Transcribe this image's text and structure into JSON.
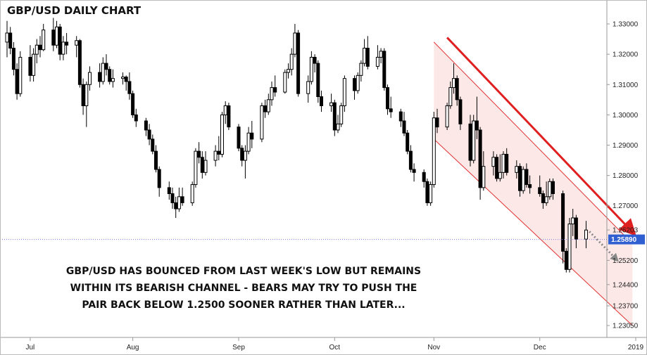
{
  "chart_data": {
    "type": "candlestick",
    "title": "GBP/USD DAILY CHART",
    "x_labels": [
      "Jul",
      "Aug",
      "Sep",
      "Oct",
      "Nov",
      "Dec",
      "2019"
    ],
    "y_ticks": [
      "1.33000",
      "1.32000",
      "1.31000",
      "1.30000",
      "1.29000",
      "1.28000",
      "1.27000",
      "1.26203",
      "1.25200",
      "1.24400",
      "1.23700",
      "1.23050"
    ],
    "y_range": [
      1.2275,
      1.3365
    ],
    "current_price": "1.25890",
    "current_price_value": 1.2589,
    "annotation": [
      "GBP/USD HAS BOUNCED FROM LAST WEEK'S LOW BUT REMAINS",
      "WITHIN ITS BEARISH CHANNEL - BEARS MAY TRY TO PUSH THE",
      "PAIR BACK BELOW 1.2500 SOONER RATHER THAN LATER..."
    ],
    "candles_approx": [
      {
        "date": "2018-06-25",
        "o": 1.324,
        "h": 1.331,
        "l": 1.319,
        "c": 1.327
      },
      {
        "date": "2018-06-26",
        "o": 1.327,
        "h": 1.329,
        "l": 1.32,
        "c": 1.322
      },
      {
        "date": "2018-06-27",
        "o": 1.322,
        "h": 1.324,
        "l": 1.313,
        "c": 1.315
      },
      {
        "date": "2018-06-28",
        "o": 1.315,
        "h": 1.317,
        "l": 1.305,
        "c": 1.307
      },
      {
        "date": "2018-06-29",
        "o": 1.307,
        "h": 1.321,
        "l": 1.306,
        "c": 1.319
      },
      {
        "date": "2018-07-02",
        "o": 1.319,
        "h": 1.323,
        "l": 1.311,
        "c": 1.313
      },
      {
        "date": "2018-07-03",
        "o": 1.313,
        "h": 1.322,
        "l": 1.311,
        "c": 1.32
      },
      {
        "date": "2018-07-04",
        "o": 1.32,
        "h": 1.325,
        "l": 1.317,
        "c": 1.323
      },
      {
        "date": "2018-07-05",
        "o": 1.323,
        "h": 1.326,
        "l": 1.319,
        "c": 1.3215
      },
      {
        "date": "2018-07-06",
        "o": 1.3215,
        "h": 1.33,
        "l": 1.321,
        "c": 1.328
      },
      {
        "date": "2018-07-09",
        "o": 1.328,
        "h": 1.332,
        "l": 1.321,
        "c": 1.323
      },
      {
        "date": "2018-07-10",
        "o": 1.323,
        "h": 1.331,
        "l": 1.322,
        "c": 1.329
      },
      {
        "date": "2018-07-11",
        "o": 1.329,
        "h": 1.33,
        "l": 1.318,
        "c": 1.32
      },
      {
        "date": "2018-07-12",
        "o": 1.32,
        "h": 1.326,
        "l": 1.318,
        "c": 1.324
      },
      {
        "date": "2018-07-13",
        "o": 1.324,
        "h": 1.327,
        "l": 1.32,
        "c": 1.323
      },
      {
        "date": "2018-07-16",
        "o": 1.323,
        "h": 1.326,
        "l": 1.319,
        "c": 1.3245
      },
      {
        "date": "2018-07-17",
        "o": 1.3245,
        "h": 1.325,
        "l": 1.309,
        "c": 1.31
      },
      {
        "date": "2018-07-18",
        "o": 1.31,
        "h": 1.312,
        "l": 1.3,
        "c": 1.303
      },
      {
        "date": "2018-07-19",
        "o": 1.303,
        "h": 1.311,
        "l": 1.296,
        "c": 1.31
      },
      {
        "date": "2018-07-20",
        "o": 1.31,
        "h": 1.316,
        "l": 1.308,
        "c": 1.314
      },
      {
        "date": "2018-07-23",
        "o": 1.314,
        "h": 1.317,
        "l": 1.309,
        "c": 1.311
      },
      {
        "date": "2018-07-24",
        "o": 1.311,
        "h": 1.319,
        "l": 1.31,
        "c": 1.317
      },
      {
        "date": "2018-07-25",
        "o": 1.317,
        "h": 1.32,
        "l": 1.313,
        "c": 1.315
      },
      {
        "date": "2018-07-26",
        "o": 1.315,
        "h": 1.316,
        "l": 1.31,
        "c": 1.311
      },
      {
        "date": "2018-07-27",
        "o": 1.311,
        "h": 1.315,
        "l": 1.309,
        "c": 1.312
      },
      {
        "date": "2018-07-30",
        "o": 1.312,
        "h": 1.314,
        "l": 1.31,
        "c": 1.3125
      },
      {
        "date": "2018-07-31",
        "o": 1.3125,
        "h": 1.313,
        "l": 1.308,
        "c": 1.311
      },
      {
        "date": "2018-08-01",
        "o": 1.311,
        "h": 1.314,
        "l": 1.305,
        "c": 1.307
      },
      {
        "date": "2018-08-02",
        "o": 1.307,
        "h": 1.308,
        "l": 1.299,
        "c": 1.3
      },
      {
        "date": "2018-08-03",
        "o": 1.3,
        "h": 1.302,
        "l": 1.296,
        "c": 1.298
      },
      {
        "date": "2018-08-06",
        "o": 1.298,
        "h": 1.299,
        "l": 1.293,
        "c": 1.295
      },
      {
        "date": "2018-08-07",
        "o": 1.295,
        "h": 1.297,
        "l": 1.29,
        "c": 1.292
      },
      {
        "date": "2018-08-08",
        "o": 1.292,
        "h": 1.2935,
        "l": 1.287,
        "c": 1.288
      },
      {
        "date": "2018-08-09",
        "o": 1.288,
        "h": 1.29,
        "l": 1.281,
        "c": 1.282
      },
      {
        "date": "2018-08-10",
        "o": 1.282,
        "h": 1.283,
        "l": 1.273,
        "c": 1.276
      },
      {
        "date": "2018-08-13",
        "o": 1.276,
        "h": 1.278,
        "l": 1.272,
        "c": 1.274
      },
      {
        "date": "2018-08-14",
        "o": 1.274,
        "h": 1.276,
        "l": 1.269,
        "c": 1.271
      },
      {
        "date": "2018-08-15",
        "o": 1.271,
        "h": 1.273,
        "l": 1.266,
        "c": 1.269
      },
      {
        "date": "2018-08-16",
        "o": 1.269,
        "h": 1.276,
        "l": 1.268,
        "c": 1.273
      },
      {
        "date": "2018-08-17",
        "o": 1.273,
        "h": 1.276,
        "l": 1.27,
        "c": 1.271
      },
      {
        "date": "2018-08-20",
        "o": 1.271,
        "h": 1.278,
        "l": 1.27,
        "c": 1.277
      },
      {
        "date": "2018-08-21",
        "o": 1.277,
        "h": 1.289,
        "l": 1.276,
        "c": 1.288
      },
      {
        "date": "2018-08-22",
        "o": 1.288,
        "h": 1.291,
        "l": 1.284,
        "c": 1.286
      },
      {
        "date": "2018-08-23",
        "o": 1.286,
        "h": 1.288,
        "l": 1.279,
        "c": 1.281
      },
      {
        "date": "2018-08-24",
        "o": 1.281,
        "h": 1.288,
        "l": 1.28,
        "c": 1.285
      },
      {
        "date": "2018-08-27",
        "o": 1.285,
        "h": 1.29,
        "l": 1.283,
        "c": 1.288
      },
      {
        "date": "2018-08-28",
        "o": 1.288,
        "h": 1.293,
        "l": 1.285,
        "c": 1.287
      },
      {
        "date": "2018-08-29",
        "o": 1.287,
        "h": 1.301,
        "l": 1.286,
        "c": 1.3
      },
      {
        "date": "2018-08-30",
        "o": 1.3,
        "h": 1.3045,
        "l": 1.297,
        "c": 1.303
      },
      {
        "date": "2018-08-31",
        "o": 1.303,
        "h": 1.304,
        "l": 1.295,
        "c": 1.296
      },
      {
        "date": "2018-09-03",
        "o": 1.296,
        "h": 1.297,
        "l": 1.288,
        "c": 1.289
      },
      {
        "date": "2018-09-04",
        "o": 1.289,
        "h": 1.29,
        "l": 1.283,
        "c": 1.285
      },
      {
        "date": "2018-09-05",
        "o": 1.285,
        "h": 1.29,
        "l": 1.279,
        "c": 1.288
      },
      {
        "date": "2018-09-06",
        "o": 1.288,
        "h": 1.296,
        "l": 1.287,
        "c": 1.294
      },
      {
        "date": "2018-09-07",
        "o": 1.294,
        "h": 1.298,
        "l": 1.289,
        "c": 1.292
      },
      {
        "date": "2018-09-10",
        "o": 1.292,
        "h": 1.304,
        "l": 1.291,
        "c": 1.303
      },
      {
        "date": "2018-09-11",
        "o": 1.303,
        "h": 1.305,
        "l": 1.299,
        "c": 1.301
      },
      {
        "date": "2018-09-12",
        "o": 1.301,
        "h": 1.307,
        "l": 1.3,
        "c": 1.305
      },
      {
        "date": "2018-09-13",
        "o": 1.305,
        "h": 1.311,
        "l": 1.303,
        "c": 1.309
      },
      {
        "date": "2018-09-14",
        "o": 1.309,
        "h": 1.313,
        "l": 1.306,
        "c": 1.3075
      },
      {
        "date": "2018-09-17",
        "o": 1.3075,
        "h": 1.315,
        "l": 1.307,
        "c": 1.314
      },
      {
        "date": "2018-09-18",
        "o": 1.314,
        "h": 1.317,
        "l": 1.312,
        "c": 1.315
      },
      {
        "date": "2018-09-19",
        "o": 1.315,
        "h": 1.322,
        "l": 1.313,
        "c": 1.32
      },
      {
        "date": "2018-09-20",
        "o": 1.32,
        "h": 1.33,
        "l": 1.319,
        "c": 1.327
      },
      {
        "date": "2018-09-21",
        "o": 1.327,
        "h": 1.328,
        "l": 1.306,
        "c": 1.307
      },
      {
        "date": "2018-09-24",
        "o": 1.307,
        "h": 1.313,
        "l": 1.304,
        "c": 1.311
      },
      {
        "date": "2018-09-25",
        "o": 1.311,
        "h": 1.321,
        "l": 1.31,
        "c": 1.319
      },
      {
        "date": "2018-09-26",
        "o": 1.319,
        "h": 1.32,
        "l": 1.314,
        "c": 1.317
      },
      {
        "date": "2018-09-27",
        "o": 1.317,
        "h": 1.318,
        "l": 1.304,
        "c": 1.306
      },
      {
        "date": "2018-09-28",
        "o": 1.306,
        "h": 1.308,
        "l": 1.301,
        "c": 1.303
      },
      {
        "date": "2018-10-01",
        "o": 1.303,
        "h": 1.307,
        "l": 1.301,
        "c": 1.304
      },
      {
        "date": "2018-10-02",
        "o": 1.304,
        "h": 1.305,
        "l": 1.293,
        "c": 1.295
      },
      {
        "date": "2018-10-03",
        "o": 1.295,
        "h": 1.3,
        "l": 1.294,
        "c": 1.297
      },
      {
        "date": "2018-10-04",
        "o": 1.297,
        "h": 1.304,
        "l": 1.296,
        "c": 1.303
      },
      {
        "date": "2018-10-05",
        "o": 1.303,
        "h": 1.313,
        "l": 1.301,
        "c": 1.312
      },
      {
        "date": "2018-10-08",
        "o": 1.312,
        "h": 1.313,
        "l": 1.305,
        "c": 1.308
      },
      {
        "date": "2018-10-09",
        "o": 1.308,
        "h": 1.314,
        "l": 1.307,
        "c": 1.313
      },
      {
        "date": "2018-10-10",
        "o": 1.313,
        "h": 1.318,
        "l": 1.311,
        "c": 1.317
      },
      {
        "date": "2018-10-11",
        "o": 1.317,
        "h": 1.325,
        "l": 1.316,
        "c": 1.322
      },
      {
        "date": "2018-10-12",
        "o": 1.322,
        "h": 1.326,
        "l": 1.315,
        "c": 1.316
      },
      {
        "date": "2018-10-15",
        "o": 1.316,
        "h": 1.323,
        "l": 1.315,
        "c": 1.319
      },
      {
        "date": "2018-10-16",
        "o": 1.319,
        "h": 1.322,
        "l": 1.317,
        "c": 1.321
      },
      {
        "date": "2018-10-17",
        "o": 1.321,
        "h": 1.322,
        "l": 1.308,
        "c": 1.309
      },
      {
        "date": "2018-10-18",
        "o": 1.309,
        "h": 1.31,
        "l": 1.3,
        "c": 1.302
      },
      {
        "date": "2018-10-19",
        "o": 1.302,
        "h": 1.306,
        "l": 1.299,
        "c": 1.301
      },
      {
        "date": "2018-10-22",
        "o": 1.301,
        "h": 1.302,
        "l": 1.296,
        "c": 1.298
      },
      {
        "date": "2018-10-23",
        "o": 1.298,
        "h": 1.301,
        "l": 1.293,
        "c": 1.294
      },
      {
        "date": "2018-10-24",
        "o": 1.294,
        "h": 1.295,
        "l": 1.287,
        "c": 1.288
      },
      {
        "date": "2018-10-25",
        "o": 1.288,
        "h": 1.29,
        "l": 1.281,
        "c": 1.282
      },
      {
        "date": "2018-10-26",
        "o": 1.282,
        "h": 1.284,
        "l": 1.278,
        "c": 1.281
      },
      {
        "date": "2018-10-29",
        "o": 1.281,
        "h": 1.282,
        "l": 1.276,
        "c": 1.278
      },
      {
        "date": "2018-10-30",
        "o": 1.278,
        "h": 1.279,
        "l": 1.27,
        "c": 1.271
      },
      {
        "date": "2018-10-31",
        "o": 1.271,
        "h": 1.278,
        "l": 1.27,
        "c": 1.277
      },
      {
        "date": "2018-11-01",
        "o": 1.277,
        "h": 1.301,
        "l": 1.276,
        "c": 1.299
      },
      {
        "date": "2018-11-02",
        "o": 1.299,
        "h": 1.302,
        "l": 1.294,
        "c": 1.296
      },
      {
        "date": "2018-11-05",
        "o": 1.296,
        "h": 1.304,
        "l": 1.295,
        "c": 1.303
      },
      {
        "date": "2018-11-06",
        "o": 1.303,
        "h": 1.311,
        "l": 1.302,
        "c": 1.309
      },
      {
        "date": "2018-11-07",
        "o": 1.309,
        "h": 1.317,
        "l": 1.307,
        "c": 1.312
      },
      {
        "date": "2018-11-08",
        "o": 1.312,
        "h": 1.313,
        "l": 1.303,
        "c": 1.305
      },
      {
        "date": "2018-11-09",
        "o": 1.305,
        "h": 1.306,
        "l": 1.295,
        "c": 1.297
      },
      {
        "date": "2018-11-12",
        "o": 1.297,
        "h": 1.3,
        "l": 1.283,
        "c": 1.285
      },
      {
        "date": "2018-11-13",
        "o": 1.285,
        "h": 1.3,
        "l": 1.284,
        "c": 1.298
      },
      {
        "date": "2018-11-14",
        "o": 1.298,
        "h": 1.306,
        "l": 1.292,
        "c": 1.295
      },
      {
        "date": "2018-11-15",
        "o": 1.295,
        "h": 1.296,
        "l": 1.272,
        "c": 1.276
      },
      {
        "date": "2018-11-16",
        "o": 1.276,
        "h": 1.288,
        "l": 1.275,
        "c": 1.283
      },
      {
        "date": "2018-11-19",
        "o": 1.283,
        "h": 1.288,
        "l": 1.28,
        "c": 1.286
      },
      {
        "date": "2018-11-20",
        "o": 1.286,
        "h": 1.287,
        "l": 1.278,
        "c": 1.279
      },
      {
        "date": "2018-11-21",
        "o": 1.279,
        "h": 1.287,
        "l": 1.278,
        "c": 1.281
      },
      {
        "date": "2018-11-22",
        "o": 1.281,
        "h": 1.288,
        "l": 1.279,
        "c": 1.287
      },
      {
        "date": "2018-11-23",
        "o": 1.287,
        "h": 1.289,
        "l": 1.28,
        "c": 1.281
      },
      {
        "date": "2018-11-26",
        "o": 1.281,
        "h": 1.285,
        "l": 1.279,
        "c": 1.283
      },
      {
        "date": "2018-11-27",
        "o": 1.283,
        "h": 1.284,
        "l": 1.273,
        "c": 1.275
      },
      {
        "date": "2018-11-28",
        "o": 1.275,
        "h": 1.283,
        "l": 1.274,
        "c": 1.282
      },
      {
        "date": "2018-11-29",
        "o": 1.282,
        "h": 1.284,
        "l": 1.276,
        "c": 1.277
      },
      {
        "date": "2018-11-30",
        "o": 1.277,
        "h": 1.28,
        "l": 1.274,
        "c": 1.276
      },
      {
        "date": "2018-12-03",
        "o": 1.276,
        "h": 1.28,
        "l": 1.273,
        "c": 1.274
      },
      {
        "date": "2018-12-04",
        "o": 1.274,
        "h": 1.275,
        "l": 1.269,
        "c": 1.271
      },
      {
        "date": "2018-12-05",
        "o": 1.271,
        "h": 1.278,
        "l": 1.27,
        "c": 1.273
      },
      {
        "date": "2018-12-06",
        "o": 1.273,
        "h": 1.279,
        "l": 1.272,
        "c": 1.278
      },
      {
        "date": "2018-12-07",
        "o": 1.278,
        "h": 1.279,
        "l": 1.272,
        "c": 1.274
      },
      {
        "date": "2018-12-10",
        "o": 1.274,
        "h": 1.275,
        "l": 1.251,
        "c": 1.255
      },
      {
        "date": "2018-12-11",
        "o": 1.255,
        "h": 1.256,
        "l": 1.248,
        "c": 1.249
      },
      {
        "date": "2018-12-12",
        "o": 1.249,
        "h": 1.266,
        "l": 1.248,
        "c": 1.264
      },
      {
        "date": "2018-12-13",
        "o": 1.264,
        "h": 1.269,
        "l": 1.26,
        "c": 1.266
      },
      {
        "date": "2018-12-14",
        "o": 1.266,
        "h": 1.267,
        "l": 1.256,
        "c": 1.259
      },
      {
        "date": "2018-12-17",
        "o": 1.259,
        "h": 1.265,
        "l": 1.256,
        "c": 1.262
      }
    ],
    "channel": {
      "upper": [
        {
          "date": "2018-11-01",
          "v": 1.324
        },
        {
          "date": "2018-12-31",
          "v": 1.2575
        }
      ],
      "lower": [
        {
          "date": "2018-11-01",
          "v": 1.292
        },
        {
          "date": "2018-12-31",
          "v": 1.2305
        }
      ]
    },
    "colors": {
      "bear": "#000000",
      "bull": "#ffffff",
      "channel_line": "#e03030",
      "channel_fill": "#fde4e4",
      "arrow": "#e02020",
      "projection_arrow": "#888888",
      "price_tag": "#2f5fd0",
      "dotted_line": "#7a7ad8"
    }
  }
}
